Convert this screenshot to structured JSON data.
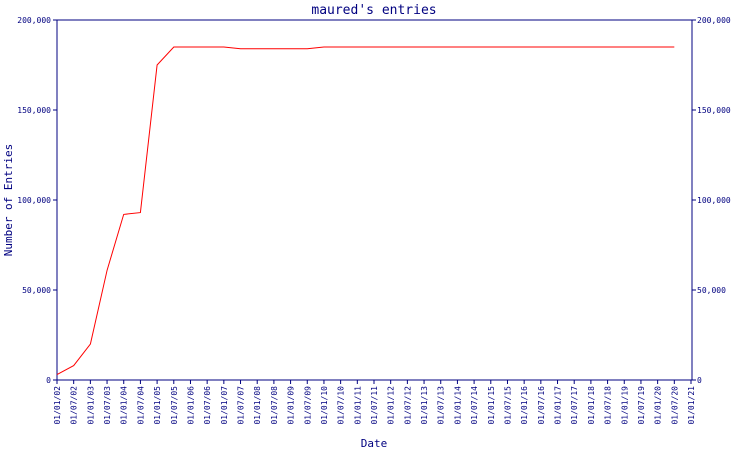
{
  "chart_data": {
    "type": "line",
    "title": "maured's entries",
    "x_label": "Date",
    "y_label": "Number of Entries",
    "categories": [
      "01/01/02",
      "01/07/02",
      "01/01/03",
      "01/07/03",
      "01/01/04",
      "01/07/04",
      "01/01/05",
      "01/07/05",
      "01/01/06",
      "01/07/06",
      "01/01/07",
      "01/07/07",
      "01/01/08",
      "01/07/08",
      "01/01/09",
      "01/07/09",
      "01/01/10",
      "01/07/10",
      "01/01/11",
      "01/07/11",
      "01/01/12",
      "01/07/12",
      "01/01/13",
      "01/07/13",
      "01/01/14",
      "01/07/14",
      "01/01/15",
      "01/07/15",
      "01/01/16",
      "01/07/16",
      "01/01/17",
      "01/07/17",
      "01/01/18",
      "01/07/18",
      "01/01/19",
      "01/07/19",
      "01/01/20",
      "01/07/20",
      "01/01/21"
    ],
    "values": [
      3000,
      8000,
      20000,
      61000,
      92000,
      93000,
      175000,
      185000,
      185000,
      185000,
      185000,
      184000,
      184000,
      184000,
      184000,
      184000,
      185000,
      185000,
      185000,
      185000,
      185000,
      185000,
      185000,
      185000,
      185000,
      185000,
      185000,
      185000,
      185000,
      185000,
      185000,
      185000,
      185000,
      185000,
      185000,
      185000,
      185000,
      185000,
      null
    ],
    "color": "#ff0000",
    "axis_color": "#000080",
    "ylim": [
      0,
      200000
    ],
    "yticks": [
      {
        "value": 0,
        "label": "0"
      },
      {
        "value": 50000,
        "label": "50,000"
      },
      {
        "value": 100000,
        "label": "100,000"
      },
      {
        "value": 150000,
        "label": "150,000"
      },
      {
        "value": 200000,
        "label": "200,000"
      }
    ],
    "y2lim": [
      0,
      200000
    ],
    "y2ticks": [
      {
        "value": 0,
        "label": "0"
      },
      {
        "value": 50000,
        "label": "50,000"
      },
      {
        "value": 100000,
        "label": "100,000"
      },
      {
        "value": 150000,
        "label": "150,000"
      },
      {
        "value": 200000,
        "label": "200,000"
      }
    ]
  }
}
